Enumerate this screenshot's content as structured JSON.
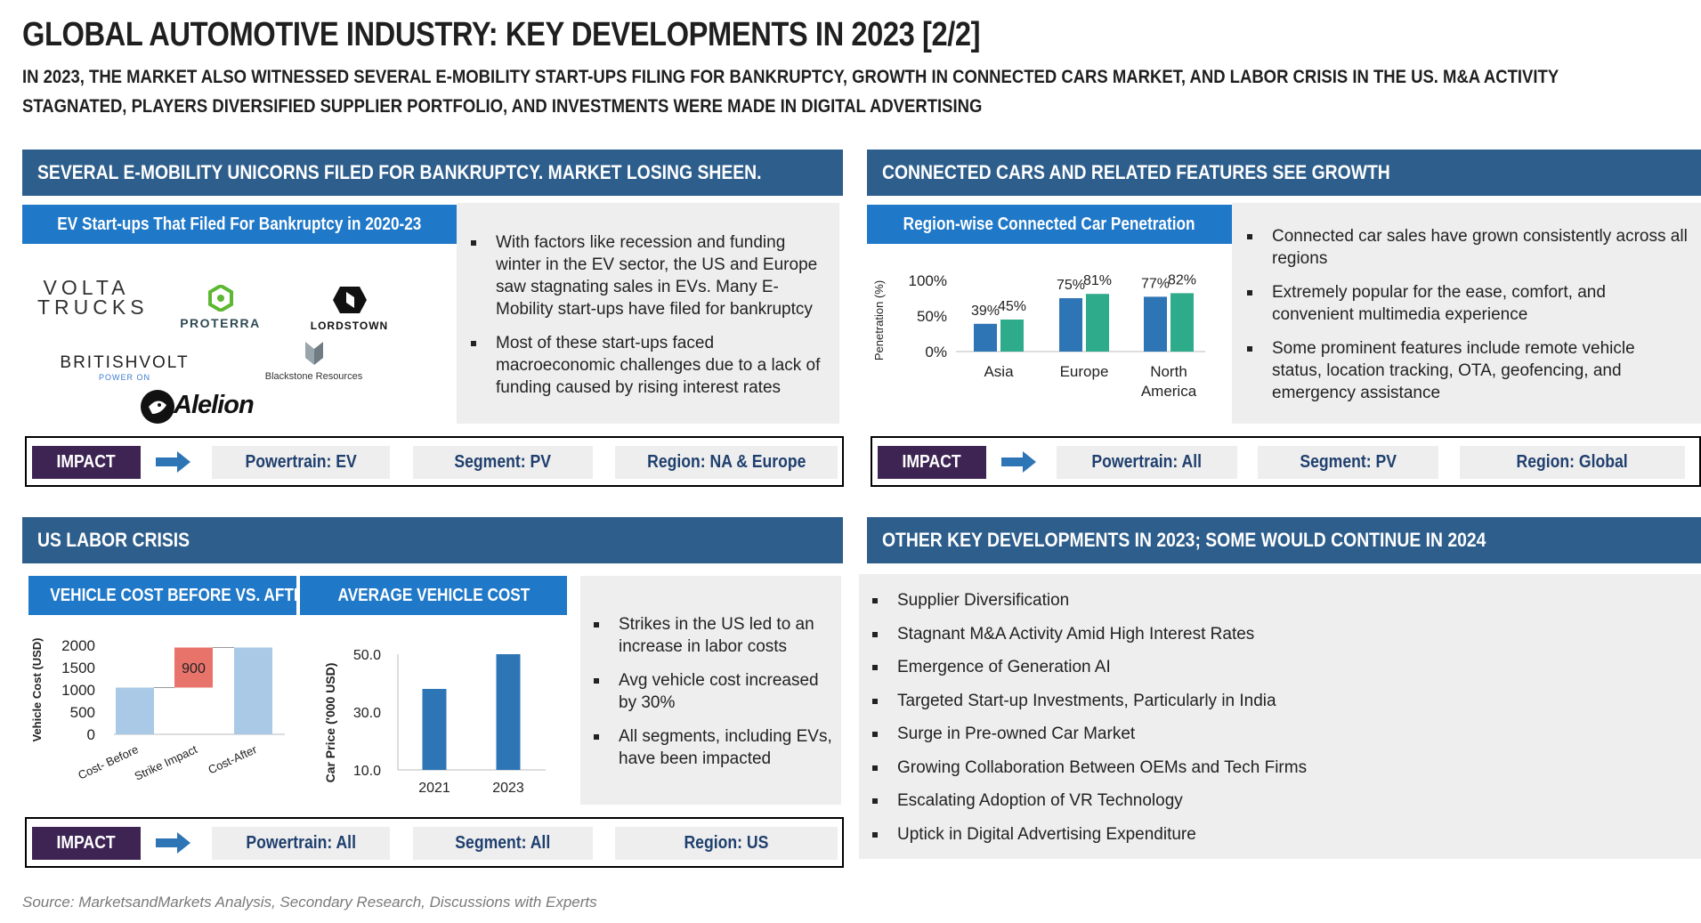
{
  "header": {
    "title": "GLOBAL AUTOMOTIVE INDUSTRY: KEY DEVELOPMENTS IN 2023 [2/2]",
    "subtitle": "IN 2023, THE MARKET ALSO WITNESSED SEVERAL E-MOBILITY START-UPS FILING FOR BANKRUPTCY, GROWTH IN CONNECTED CARS MARKET, AND LABOR CRISIS IN THE US. M&A ACTIVITY STAGNATED, PLAYERS DIVERSIFIED SUPPLIER PORTFOLIO, AND INVESTMENTS WERE MADE IN DIGITAL ADVERTISING"
  },
  "ev_section": {
    "heading": "SEVERAL E-MOBILITY UNICORNS FILED FOR BANKRUPTCY. MARKET LOSING SHEEN.",
    "subheading": "EV Start-ups That Filed For Bankruptcy in 2020-23",
    "logos": {
      "volta_line1": "VOLTA",
      "volta_line2": "TRUCKS",
      "proterra": "PROTERRA",
      "lordstown": "LORDSTOWN",
      "britishvolt": "BRITISHVOLT",
      "britishvolt_tag": "POWER ON",
      "blackstone": "Blackstone Resources",
      "alelion": "Alelion"
    },
    "bullets": [
      "With factors like recession and funding winter in the EV sector, the US and Europe saw stagnating sales in EVs. Many E-Mobility start-ups have filed for bankruptcy",
      "Most of these start-ups faced macroeconomic challenges due to a lack of funding caused by rising interest rates"
    ],
    "impact": {
      "label": "IMPACT",
      "powertrain": "Powertrain: EV",
      "segment": "Segment: PV",
      "region": "Region: NA & Europe"
    }
  },
  "connected_section": {
    "heading": "CONNECTED CARS AND RELATED FEATURES SEE GROWTH",
    "subheading": "Region-wise Connected Car Penetration",
    "bullets": [
      "Connected car sales have grown consistently across all regions",
      "Extremely popular for the ease, comfort, and convenient multimedia experience",
      "Some prominent features include remote vehicle status, location tracking, OTA, geofencing, and emergency assistance"
    ],
    "impact": {
      "label": "IMPACT",
      "powertrain": "Powertrain: All",
      "segment": "Segment: PV",
      "region": "Region: Global"
    }
  },
  "labor_section": {
    "heading": "US LABOR CRISIS",
    "subheading_1": "VEHICLE COST BEFORE VS. AFTER",
    "subheading_2": "AVERAGE VEHICLE COST",
    "bullets": [
      "Strikes in the US led to an increase in labor costs",
      "Avg vehicle cost increased by 30%",
      "All segments, including EVs, have been impacted"
    ],
    "impact": {
      "label": "IMPACT",
      "powertrain": "Powertrain: All",
      "segment": "Segment: All",
      "region": "Region: US"
    }
  },
  "other_section": {
    "heading": "OTHER KEY DEVELOPMENTS IN 2023; SOME WOULD CONTINUE IN 2024",
    "bullets": [
      "Supplier Diversification",
      "Stagnant M&A Activity Amid High Interest Rates",
      "Emergence of Generation AI",
      "Targeted Start-up Investments, Particularly in India",
      "Surge in Pre-owned Car Market",
      "Growing Collaboration Between OEMs and Tech Firms",
      "Escalating Adoption of VR Technology",
      "Uptick in Digital Advertising Expenditure"
    ]
  },
  "source": "Source: MarketsandMarkets Analysis, Secondary Research, Discussions with Experts",
  "colors": {
    "section_head": "#2e5e8c",
    "sub_head": "#1f78c8",
    "impact": "#3d2453",
    "bar_blue": "#2e75b6",
    "bar_teal": "#2eab8a",
    "waterfall_light": "#a9c9e6",
    "waterfall_red": "#e8736b"
  },
  "chart_data": [
    {
      "type": "bar",
      "title": "Region-wise Connected Car Penetration",
      "ylabel": "Penetration (%)",
      "categories": [
        "Asia",
        "Europe",
        "North America"
      ],
      "series": [
        {
          "values": [
            39,
            75,
            77
          ],
          "labels": [
            "39%",
            "75%",
            "77%"
          ]
        },
        {
          "values": [
            45,
            81,
            82
          ],
          "labels": [
            "45%",
            "81%",
            "82%"
          ]
        }
      ],
      "yticks": [
        "0%",
        "50%",
        "100%"
      ],
      "ylim": [
        0,
        100
      ],
      "grid": false
    },
    {
      "type": "bar",
      "subtype": "waterfall",
      "title": "VEHICLE COST BEFORE VS. AFTER",
      "ylabel": "Vehicle Cost (USD)",
      "categories": [
        "Cost- Before",
        "Strike Impact",
        "Cost-After"
      ],
      "values": [
        1050,
        900,
        1950
      ],
      "data_labels": [
        "",
        "900",
        ""
      ],
      "yticks": [
        "0",
        "500",
        "1000",
        "1500",
        "2000"
      ],
      "ylim": [
        0,
        2000
      ],
      "grid": false
    },
    {
      "type": "bar",
      "title": "AVERAGE VEHICLE COST",
      "ylabel": "Car Price ('000 USD)",
      "categories": [
        "2021",
        "2023"
      ],
      "values": [
        38,
        50
      ],
      "yticks": [
        "10.0",
        "30.0",
        "50.0"
      ],
      "ylim": [
        10,
        50
      ],
      "grid": false
    }
  ]
}
